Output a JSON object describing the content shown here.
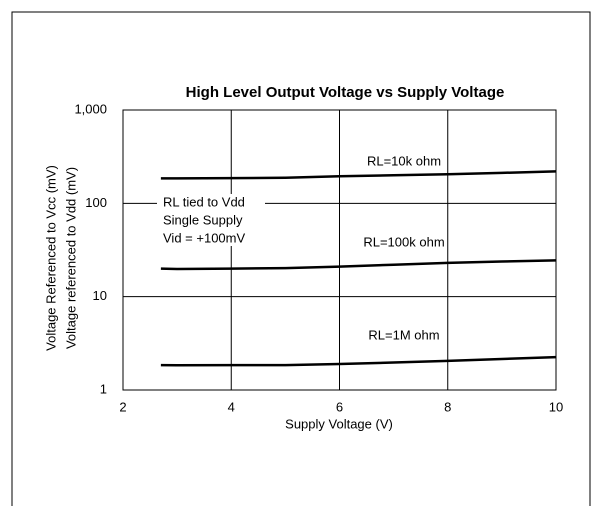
{
  "chart_data": {
    "type": "line",
    "title": "High Level Output Voltage vs Supply Voltage",
    "xlabel": "Supply Voltage (V)",
    "ylabels": [
      "Voltage Referenced to Vcc (mV)",
      "Voltage referenced to Vdd (mV)"
    ],
    "annotation": [
      "RL tied to Vdd",
      "Single Supply",
      "Vid = +100mV"
    ],
    "x": [
      2.7,
      3,
      4,
      5,
      6,
      7,
      8,
      9,
      10
    ],
    "series": [
      {
        "name": "RL=10k ohm",
        "color": "#000000",
        "values": [
          185,
          185,
          186,
          188,
          195,
          200,
          205,
          212,
          220
        ]
      },
      {
        "name": "RL=100k ohm",
        "color": "#000000",
        "values": [
          20,
          19.8,
          20,
          20.2,
          21,
          22,
          23,
          23.8,
          24.5
        ]
      },
      {
        "name": "RL=1M ohm",
        "color": "#000000",
        "values": [
          1.85,
          1.84,
          1.85,
          1.85,
          1.9,
          1.97,
          2.05,
          2.15,
          2.25
        ]
      }
    ],
    "xlim": [
      2,
      10
    ],
    "xticks": [
      2,
      4,
      6,
      8,
      10
    ],
    "ylim": [
      1,
      1000
    ],
    "yticks": [
      1,
      10,
      100,
      {
        "value": 1000,
        "label": "1,000"
      }
    ],
    "ylog": true,
    "grid": true
  }
}
